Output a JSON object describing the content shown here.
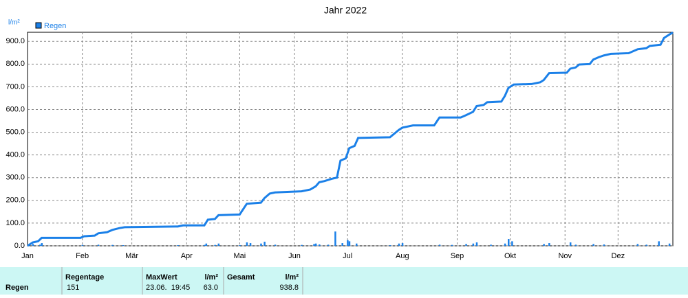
{
  "chart_data": {
    "type": "line",
    "title": "Jahr 2022",
    "y_label": "l/m²",
    "grid": true,
    "legend": "top-left",
    "xlim": [
      0,
      365
    ],
    "ylim": [
      0,
      940
    ],
    "xticks": [
      {
        "value": 0,
        "label": "Jan"
      },
      {
        "value": 31,
        "label": "Feb"
      },
      {
        "value": 59,
        "label": "Mär"
      },
      {
        "value": 90,
        "label": "Apr"
      },
      {
        "value": 120,
        "label": "Mai"
      },
      {
        "value": 151,
        "label": "Jun"
      },
      {
        "value": 181,
        "label": "Jul"
      },
      {
        "value": 212,
        "label": "Aug"
      },
      {
        "value": 243,
        "label": "Sep"
      },
      {
        "value": 273,
        "label": "Okt"
      },
      {
        "value": 304,
        "label": "Nov"
      },
      {
        "value": 334,
        "label": "Dez"
      }
    ],
    "yticks": [
      {
        "value": 0,
        "label": "0.0"
      },
      {
        "value": 100,
        "label": "100.0"
      },
      {
        "value": 200,
        "label": "200.0"
      },
      {
        "value": 300,
        "label": "300.0"
      },
      {
        "value": 400,
        "label": "400.0"
      },
      {
        "value": 500,
        "label": "500.0"
      },
      {
        "value": 600,
        "label": "600.0"
      },
      {
        "value": 700,
        "label": "700.0"
      },
      {
        "value": 800,
        "label": "800.0"
      },
      {
        "value": 900,
        "label": "900.0"
      }
    ],
    "series": [
      {
        "name": "Regen",
        "type": "line",
        "color": "#1b80e8",
        "x": [
          0,
          3,
          6,
          8,
          30,
          32,
          38,
          40,
          45,
          48,
          52,
          55,
          85,
          88,
          100,
          102,
          106,
          108,
          120,
          124,
          132,
          134,
          137,
          140,
          155,
          160,
          163,
          165,
          168,
          172,
          175,
          177,
          180,
          182,
          185,
          187,
          205,
          210,
          212,
          218,
          230,
          233,
          245,
          248,
          252,
          254,
          258,
          260,
          268,
          270,
          272,
          275,
          285,
          290,
          292,
          295,
          305,
          307,
          310,
          312,
          318,
          320,
          323,
          326,
          330,
          340,
          345,
          350,
          352,
          358,
          360,
          363,
          365
        ],
        "values": [
          0,
          15,
          20,
          35,
          35,
          42,
          45,
          55,
          60,
          70,
          78,
          82,
          85,
          90,
          90,
          115,
          118,
          135,
          138,
          185,
          190,
          210,
          230,
          235,
          240,
          248,
          262,
          280,
          285,
          295,
          300,
          375,
          385,
          430,
          440,
          475,
          478,
          510,
          520,
          530,
          530,
          565,
          565,
          575,
          590,
          615,
          620,
          632,
          635,
          660,
          695,
          710,
          712,
          720,
          730,
          760,
          762,
          780,
          785,
          798,
          800,
          820,
          830,
          838,
          845,
          848,
          865,
          870,
          880,
          885,
          915,
          930,
          938.8
        ]
      },
      {
        "type": "bar",
        "color": "#1b80e8",
        "x": [
          3,
          7,
          8,
          31,
          40,
          48,
          54,
          85,
          100,
          101,
          106,
          108,
          120,
          124,
          126,
          132,
          134,
          140,
          155,
          162,
          163,
          165,
          170,
          174,
          178,
          181,
          182,
          186,
          205,
          210,
          212,
          233,
          240,
          248,
          252,
          254,
          262,
          270,
          272,
          274,
          292,
          295,
          307,
          310,
          320,
          326,
          345,
          350,
          357,
          363
        ],
        "values": [
          8,
          5,
          12,
          4,
          5,
          4,
          3,
          3,
          4,
          10,
          4,
          10,
          3,
          15,
          12,
          10,
          18,
          5,
          4,
          8,
          10,
          6,
          5,
          63,
          12,
          25,
          20,
          10,
          3,
          10,
          12,
          5,
          4,
          8,
          10,
          15,
          5,
          10,
          30,
          20,
          8,
          12,
          15,
          5,
          8,
          6,
          8,
          5,
          20,
          10
        ]
      }
    ]
  },
  "table": {
    "headers": [
      "Regentage",
      "MaxWert",
      "l/m²",
      "Gesamt",
      "l/m²"
    ],
    "rows": [
      [
        "Regen",
        "151",
        "23.06.  19:45",
        "63.0",
        "938.8"
      ]
    ]
  }
}
